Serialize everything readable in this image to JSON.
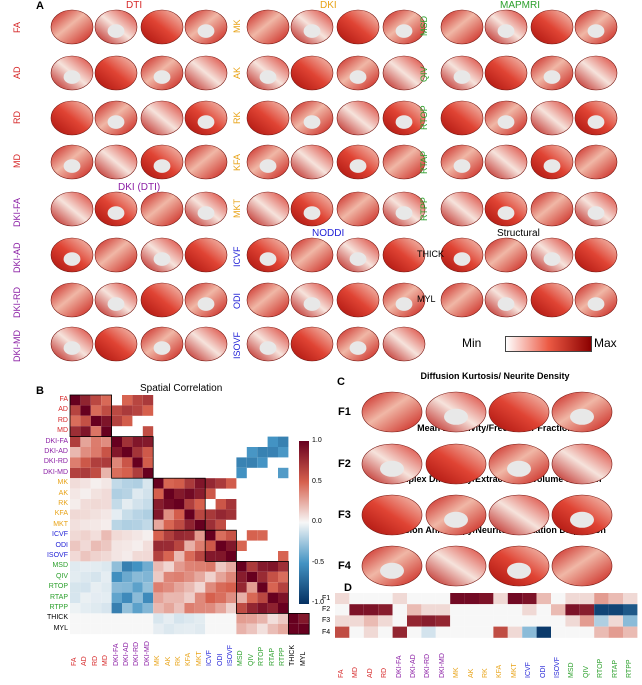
{
  "panels": {
    "a": "A",
    "b": "B",
    "c": "C",
    "d": "D"
  },
  "colors": {
    "dti": "#d62728",
    "dki": "#e8a317",
    "mapmri": "#2ca02c",
    "dkidti": "#8b1fa5",
    "noddi": "#1f1fd6",
    "structural": "#000000",
    "brain_low": "#f6ede9",
    "brain_high": "#cc1c16",
    "min": "#ffffff",
    "max": "#8b0000"
  },
  "panel_a": {
    "groups": [
      {
        "title": "DTI",
        "color": "#d62728"
      },
      {
        "title": "DKI",
        "color": "#e8a317"
      },
      {
        "title": "MAPMRI",
        "color": "#2ca02c"
      },
      {
        "title": "DKI (DTI)",
        "color": "#8b1fa5"
      },
      {
        "title": "NODDI",
        "color": "#1f1fd6"
      },
      {
        "title": "Structural",
        "color": "#000000"
      }
    ],
    "col1": [
      {
        "label": "FA",
        "color": "#d62728"
      },
      {
        "label": "AD",
        "color": "#d62728"
      },
      {
        "label": "RD",
        "color": "#d62728"
      },
      {
        "label": "MD",
        "color": "#d62728"
      },
      {
        "label": "DKI-FA",
        "color": "#8b1fa5"
      },
      {
        "label": "DKI-AD",
        "color": "#8b1fa5"
      },
      {
        "label": "DKI-RD",
        "color": "#8b1fa5"
      },
      {
        "label": "DKI-MD",
        "color": "#8b1fa5"
      }
    ],
    "col2": [
      {
        "label": "MK",
        "color": "#e8a317"
      },
      {
        "label": "AK",
        "color": "#e8a317"
      },
      {
        "label": "RK",
        "color": "#e8a317"
      },
      {
        "label": "KFA",
        "color": "#e8a317"
      },
      {
        "label": "MKT",
        "color": "#e8a317"
      },
      {
        "label": "ICVF",
        "color": "#1f1fd6"
      },
      {
        "label": "ODI",
        "color": "#1f1fd6"
      },
      {
        "label": "ISOVF",
        "color": "#1f1fd6"
      }
    ],
    "col3": [
      {
        "label": "MSD",
        "color": "#2ca02c"
      },
      {
        "label": "QIV",
        "color": "#2ca02c"
      },
      {
        "label": "RTOP",
        "color": "#2ca02c"
      },
      {
        "label": "RTAP",
        "color": "#2ca02c"
      },
      {
        "label": "RTPP",
        "color": "#2ca02c"
      },
      {
        "label": "THICK",
        "color": "#000000"
      },
      {
        "label": "MYL",
        "color": "#000000"
      }
    ],
    "colorbar": {
      "min": "Min",
      "max": "Max"
    }
  },
  "panel_b": {
    "title": "Spatial Correlation",
    "labels": [
      "FA",
      "AD",
      "RD",
      "MD",
      "DKI-FA",
      "DKI-AD",
      "DKI-RD",
      "DKI-MD",
      "MK",
      "AK",
      "RK",
      "KFA",
      "MKT",
      "ICVF",
      "ODI",
      "ISOVF",
      "MSD",
      "QIV",
      "RTOP",
      "RTAP",
      "RTPP",
      "THICK",
      "MYL"
    ],
    "label_colors": [
      "#d62728",
      "#d62728",
      "#d62728",
      "#d62728",
      "#8b1fa5",
      "#8b1fa5",
      "#8b1fa5",
      "#8b1fa5",
      "#e8a317",
      "#e8a317",
      "#e8a317",
      "#e8a317",
      "#e8a317",
      "#1f1fd6",
      "#1f1fd6",
      "#1f1fd6",
      "#2ca02c",
      "#2ca02c",
      "#2ca02c",
      "#2ca02c",
      "#2ca02c",
      "#000000",
      "#000000"
    ],
    "colorbar_ticks": [
      "1.0",
      "0.5",
      "0.0",
      "-0.5",
      "-1.0"
    ]
  },
  "panel_c": {
    "factors": [
      {
        "label": "F1",
        "title": "Diffusion Kurtosis/ Neurite Density"
      },
      {
        "label": "F2",
        "title": "Mean Diffusivity/Free Water Fraction"
      },
      {
        "label": "F3",
        "title": "Complex Diffusivity/Extracellular Volume Fraction"
      },
      {
        "label": "F4",
        "title": "Diffusion Anisotropy/Neurite Orientation Dispersion"
      }
    ]
  },
  "panel_d": {
    "rows": [
      "F1",
      "F2",
      "F3",
      "F4"
    ],
    "cols": [
      "FA",
      "MD",
      "AD",
      "RD",
      "DKI-FA",
      "DKI-AD",
      "DKI-RD",
      "DKI-MD",
      "MK",
      "AK",
      "RK",
      "KFA",
      "MKT",
      "ICVF",
      "ODI",
      "ISOVF",
      "MSD",
      "QIV",
      "RTOP",
      "RTAP",
      "RTPP"
    ],
    "col_colors": [
      "#d62728",
      "#d62728",
      "#d62728",
      "#d62728",
      "#8b1fa5",
      "#8b1fa5",
      "#8b1fa5",
      "#8b1fa5",
      "#e8a317",
      "#e8a317",
      "#e8a317",
      "#e8a317",
      "#e8a317",
      "#1f1fd6",
      "#1f1fd6",
      "#1f1fd6",
      "#2ca02c",
      "#2ca02c",
      "#2ca02c",
      "#2ca02c",
      "#2ca02c"
    ]
  }
}
